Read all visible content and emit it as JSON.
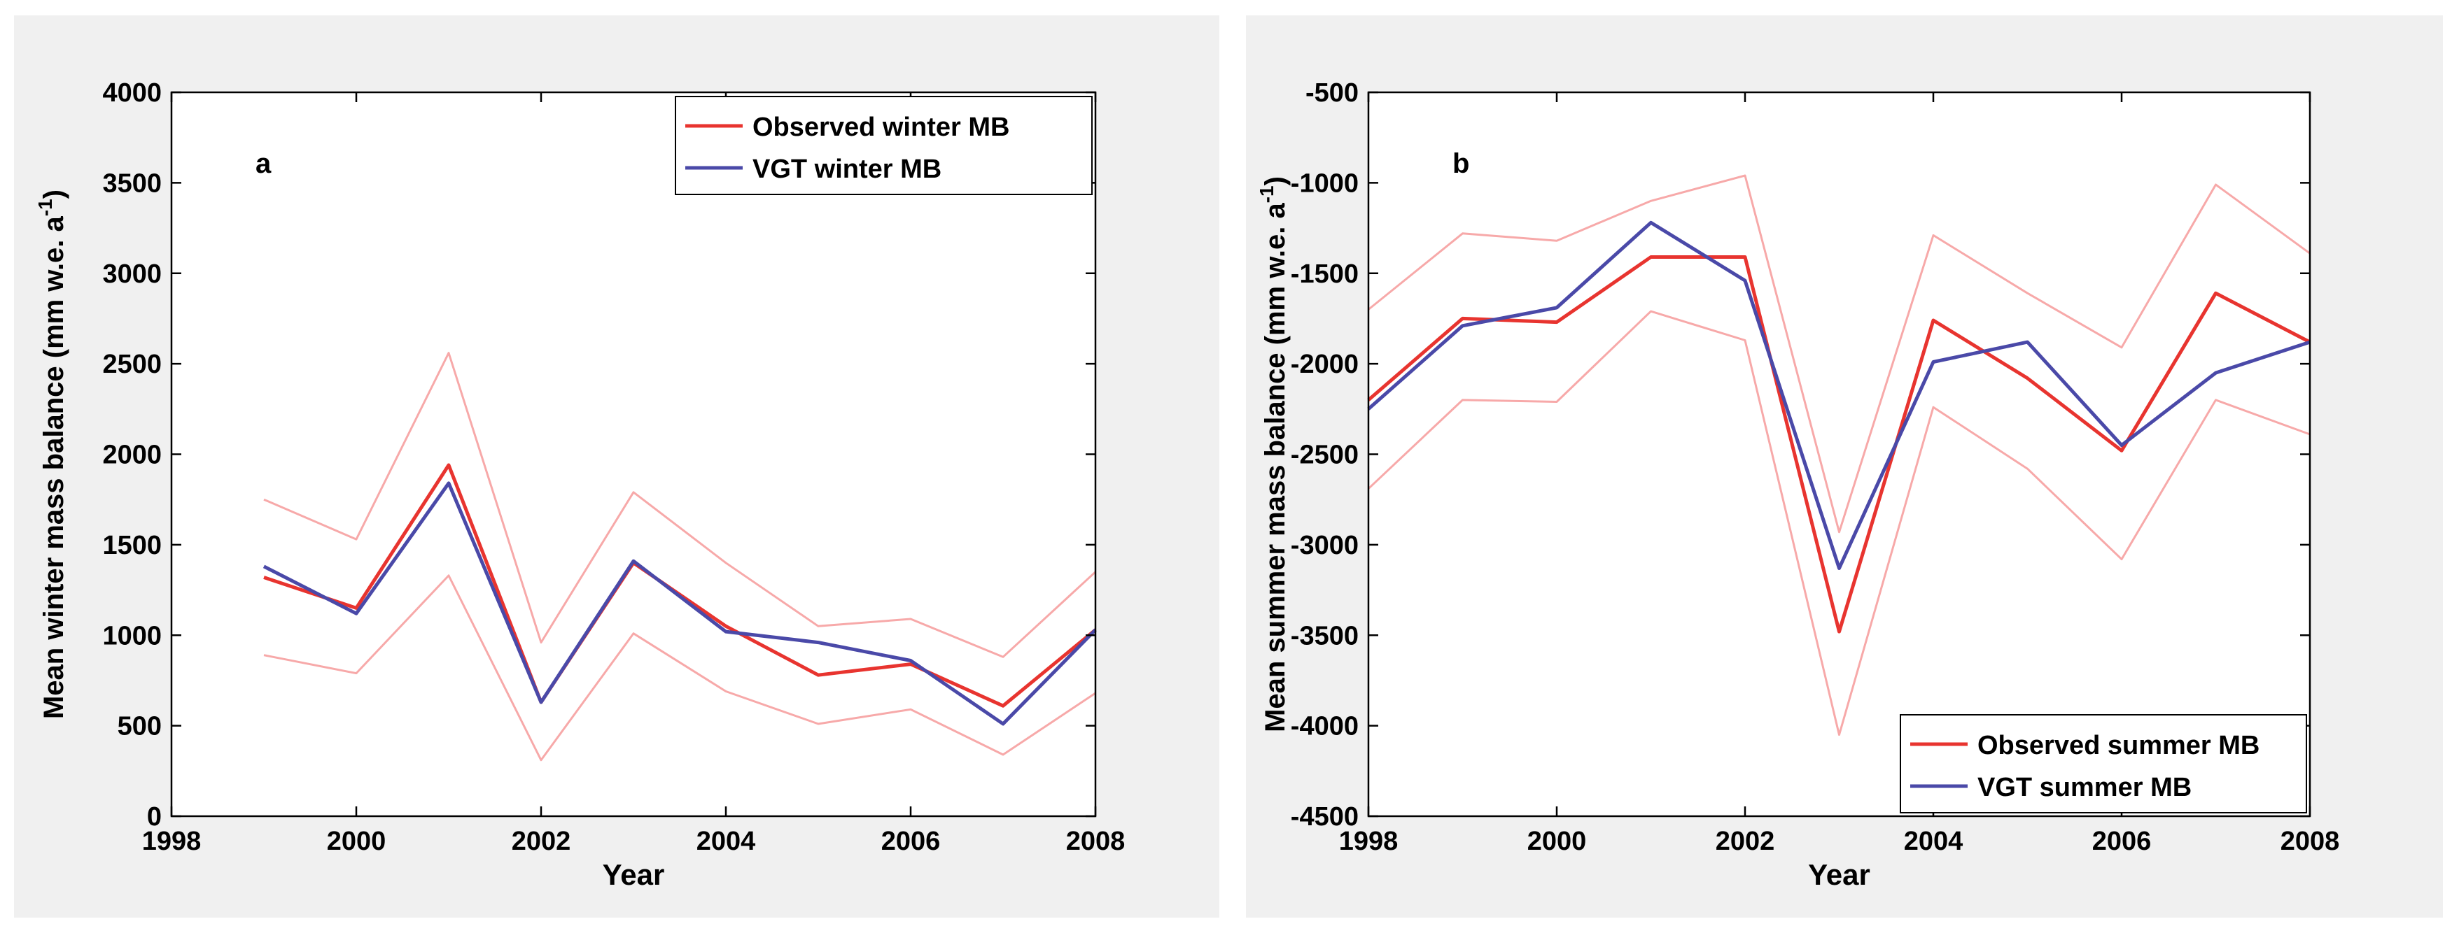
{
  "chart_data": [
    {
      "type": "line",
      "panel_label": "a",
      "xlabel": "Year",
      "ylabel": "Mean winter mass balance (mm w.e. a",
      "ylabel_sup": "-1",
      "ylabel_close": ")",
      "xlim": [
        1998,
        2008
      ],
      "ylim": [
        0,
        4000
      ],
      "xticks": [
        "1998",
        "2000",
        "2002",
        "2004",
        "2006",
        "2008"
      ],
      "yticks": [
        "0",
        "500",
        "1000",
        "1500",
        "2000",
        "2500",
        "3000",
        "3500",
        "4000"
      ],
      "legend_position": "top-right",
      "series": [
        {
          "name": "Observed winter MB",
          "color": "#e8342f",
          "role": "main",
          "in_legend": true,
          "x": [
            1999,
            2000,
            2001,
            2002,
            2003,
            2004,
            2005,
            2006,
            2007,
            2008
          ],
          "values": [
            1320,
            1150,
            1940,
            630,
            1400,
            1050,
            780,
            840,
            610,
            1030
          ]
        },
        {
          "name": "VGT winter MB",
          "color": "#4a49a8",
          "role": "main",
          "in_legend": true,
          "x": [
            1999,
            2000,
            2001,
            2002,
            2003,
            2004,
            2005,
            2006,
            2007,
            2008
          ],
          "values": [
            1380,
            1120,
            1840,
            630,
            1410,
            1020,
            960,
            860,
            510,
            1030
          ]
        },
        {
          "name": "upper bound",
          "color": "#f7a9a9",
          "role": "bound",
          "in_legend": false,
          "x": [
            1999,
            2000,
            2001,
            2002,
            2003,
            2004,
            2005,
            2006,
            2007,
            2008
          ],
          "values": [
            1750,
            1530,
            2560,
            960,
            1790,
            1400,
            1050,
            1090,
            880,
            1350
          ]
        },
        {
          "name": "lower bound",
          "color": "#f7a9a9",
          "role": "bound",
          "in_legend": false,
          "x": [
            1999,
            2000,
            2001,
            2002,
            2003,
            2004,
            2005,
            2006,
            2007,
            2008
          ],
          "values": [
            890,
            790,
            1330,
            310,
            1010,
            690,
            510,
            590,
            340,
            680
          ]
        }
      ]
    },
    {
      "type": "line",
      "panel_label": "b",
      "xlabel": "Year",
      "ylabel": "Mean summer mass balance (mm w.e. a",
      "ylabel_sup": "-1",
      "ylabel_close": ")",
      "xlim": [
        1998,
        2008
      ],
      "ylim": [
        -4500,
        -500
      ],
      "xticks": [
        "1998",
        "2000",
        "2002",
        "2004",
        "2006",
        "2008"
      ],
      "yticks": [
        "-4500",
        "-4000",
        "-3500",
        "-3000",
        "-2500",
        "-2000",
        "-1500",
        "-1000",
        "-500"
      ],
      "legend_position": "bottom-right",
      "series": [
        {
          "name": "Observed summer MB",
          "color": "#e8342f",
          "role": "main",
          "in_legend": true,
          "x": [
            1998,
            1999,
            2000,
            2001,
            2002,
            2003,
            2004,
            2005,
            2006,
            2007,
            2008
          ],
          "values": [
            -2200,
            -1750,
            -1770,
            -1410,
            -1410,
            -3480,
            -1760,
            -2080,
            -2480,
            -1610,
            -1880
          ]
        },
        {
          "name": "VGT summer MB",
          "color": "#4a49a8",
          "role": "main",
          "in_legend": true,
          "x": [
            1998,
            1999,
            2000,
            2001,
            2002,
            2003,
            2004,
            2005,
            2006,
            2007,
            2008
          ],
          "values": [
            -2250,
            -1790,
            -1690,
            -1220,
            -1540,
            -3130,
            -1990,
            -1880,
            -2450,
            -2050,
            -1880
          ]
        },
        {
          "name": "upper bound",
          "color": "#f7a9a9",
          "role": "bound",
          "in_legend": false,
          "x": [
            1998,
            1999,
            2000,
            2001,
            2002,
            2003,
            2004,
            2005,
            2006,
            2007,
            2008
          ],
          "values": [
            -1700,
            -1280,
            -1320,
            -1100,
            -960,
            -2930,
            -1290,
            -1610,
            -1910,
            -1010,
            -1390
          ]
        },
        {
          "name": "lower bound",
          "color": "#f7a9a9",
          "role": "bound",
          "in_legend": false,
          "x": [
            1998,
            1999,
            2000,
            2001,
            2002,
            2003,
            2004,
            2005,
            2006,
            2007,
            2008
          ],
          "values": [
            -2690,
            -2200,
            -2210,
            -1710,
            -1870,
            -4050,
            -2240,
            -2580,
            -3080,
            -2200,
            -2390
          ]
        }
      ]
    }
  ]
}
